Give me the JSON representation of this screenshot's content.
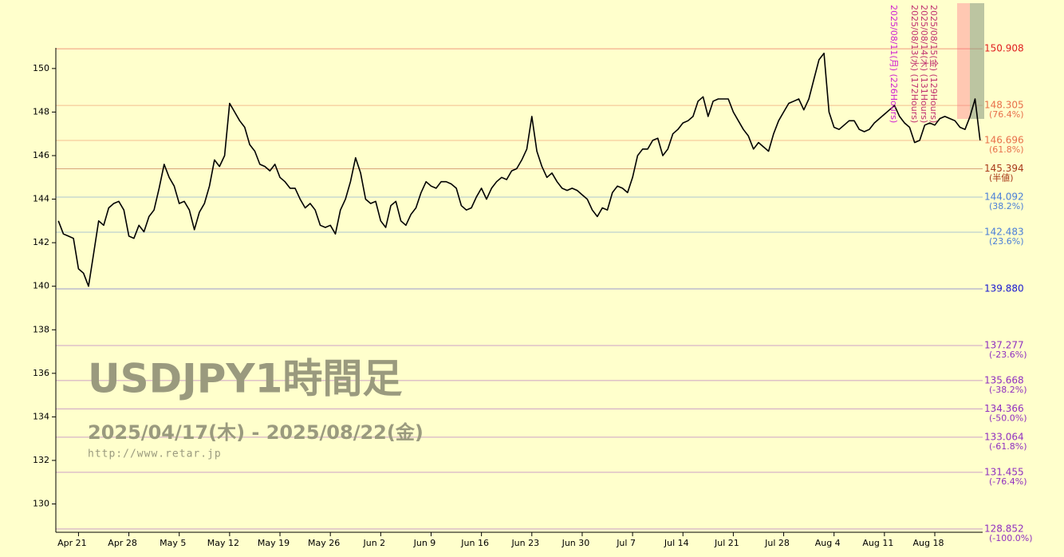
{
  "chart_data": {
    "type": "line",
    "title": "USDJPY1時間足",
    "subtitle": "2025/04/17(木) - 2025/08/22(金)",
    "source": "http://www.retar.jp",
    "categories": [
      null,
      null,
      null,
      null,
      "Apr 21",
      null,
      null,
      null,
      null,
      null,
      null,
      null,
      null,
      null,
      "Apr 28",
      null,
      null,
      null,
      null,
      null,
      null,
      null,
      null,
      null,
      "May 5",
      null,
      null,
      null,
      null,
      null,
      null,
      null,
      null,
      null,
      "May 12",
      null,
      null,
      null,
      null,
      null,
      null,
      null,
      null,
      null,
      "May 19",
      null,
      null,
      null,
      null,
      null,
      null,
      null,
      null,
      null,
      "May 26",
      null,
      null,
      null,
      null,
      null,
      null,
      null,
      null,
      null,
      "Jun 2",
      null,
      null,
      null,
      null,
      null,
      null,
      null,
      null,
      null,
      "Jun 9",
      null,
      null,
      null,
      null,
      null,
      null,
      null,
      null,
      null,
      "Jun 16",
      null,
      null,
      null,
      null,
      null,
      null,
      null,
      null,
      null,
      "Jun 23",
      null,
      null,
      null,
      null,
      null,
      null,
      null,
      null,
      null,
      "Jun 30",
      null,
      null,
      null,
      null,
      null,
      null,
      null,
      null,
      null,
      "Jul 7",
      null,
      null,
      null,
      null,
      null,
      null,
      null,
      null,
      null,
      "Jul 14",
      null,
      null,
      null,
      null,
      null,
      null,
      null,
      null,
      null,
      "Jul 21",
      null,
      null,
      null,
      null,
      null,
      null,
      null,
      null,
      null,
      "Jul 28",
      null,
      null,
      null,
      null,
      null,
      null,
      null,
      null,
      null,
      "Aug 4",
      null,
      null,
      null,
      null,
      null,
      null,
      null,
      null,
      null,
      "Aug 11",
      null,
      null,
      null,
      null,
      null,
      null,
      null,
      null,
      null,
      "Aug 18",
      null,
      null,
      null,
      null,
      null,
      null,
      null,
      null,
      null
    ],
    "series": [
      {
        "name": "USDJPY",
        "color": "#000000",
        "values": [
          143.0,
          142.4,
          142.3,
          142.2,
          140.8,
          140.6,
          140.0,
          141.5,
          143.0,
          142.8,
          143.6,
          143.8,
          143.9,
          143.5,
          142.3,
          142.2,
          142.8,
          142.5,
          143.2,
          143.5,
          144.5,
          145.6,
          145.0,
          144.6,
          143.8,
          143.9,
          143.5,
          142.6,
          143.4,
          143.8,
          144.6,
          145.8,
          145.5,
          146.0,
          148.4,
          148.0,
          147.6,
          147.3,
          146.5,
          146.2,
          145.6,
          145.5,
          145.3,
          145.6,
          145.0,
          144.8,
          144.5,
          144.5,
          144.0,
          143.6,
          143.8,
          143.5,
          142.8,
          142.7,
          142.8,
          142.4,
          143.5,
          144.0,
          144.8,
          145.9,
          145.2,
          144.0,
          143.8,
          143.9,
          143.0,
          142.7,
          143.7,
          143.9,
          143.0,
          142.8,
          143.3,
          143.6,
          144.3,
          144.8,
          144.6,
          144.5,
          144.8,
          144.8,
          144.7,
          144.5,
          143.7,
          143.5,
          143.6,
          144.1,
          144.5,
          144.0,
          144.5,
          144.8,
          145.0,
          144.9,
          145.3,
          145.4,
          145.8,
          146.3,
          147.8,
          146.2,
          145.5,
          145.0,
          145.2,
          144.8,
          144.5,
          144.4,
          144.5,
          144.4,
          144.2,
          144.0,
          143.5,
          143.2,
          143.6,
          143.5,
          144.3,
          144.6,
          144.5,
          144.3,
          145.0,
          146.0,
          146.3,
          146.3,
          146.7,
          146.8,
          146.0,
          146.3,
          147.0,
          147.2,
          147.5,
          147.6,
          147.8,
          148.5,
          148.7,
          147.8,
          148.5,
          148.6,
          148.6,
          148.6,
          148.0,
          147.6,
          147.2,
          146.9,
          146.3,
          146.6,
          146.4,
          146.2,
          147.0,
          147.6,
          148.0,
          148.4,
          148.5,
          148.6,
          148.1,
          148.6,
          149.5,
          150.4,
          150.7,
          148.0,
          147.3,
          147.2,
          147.4,
          147.6,
          147.6,
          147.2,
          147.1,
          147.2,
          147.5,
          147.7,
          147.9,
          148.1,
          148.3,
          147.8,
          147.5,
          147.3,
          146.6,
          146.7,
          147.4,
          147.5,
          147.4,
          147.7,
          147.8,
          147.7,
          147.6,
          147.3,
          147.2,
          147.8,
          148.6,
          146.7
        ]
      }
    ],
    "ylim": [
      128.7,
      153.0
    ],
    "yticks": [
      130,
      132,
      134,
      136,
      138,
      140,
      142,
      144,
      146,
      148,
      150
    ],
    "levels": [
      {
        "value": 150.908,
        "label": "150.908",
        "color": "#e02020"
      },
      {
        "value": 148.305,
        "label": "148.305",
        "note": "(76.4%)",
        "color": "#e8704a"
      },
      {
        "value": 146.696,
        "label": "146.696",
        "note": "(61.8%)",
        "color": "#e8704a"
      },
      {
        "value": 145.394,
        "label": "145.394",
        "note": "(半値)",
        "color": "#a83a1a"
      },
      {
        "value": 144.092,
        "label": "144.092",
        "note": "(38.2%)",
        "color": "#4a7ed8"
      },
      {
        "value": 142.483,
        "label": "142.483",
        "note": "(23.6%)",
        "color": "#4a7ed8"
      },
      {
        "value": 139.88,
        "label": "139.880",
        "color": "#1a1ad0"
      },
      {
        "value": 137.277,
        "label": "137.277",
        "note": "(-23.6%)",
        "color": "#9030c0"
      },
      {
        "value": 135.668,
        "label": "135.668",
        "note": "(-38.2%)",
        "color": "#9030c0"
      },
      {
        "value": 134.366,
        "label": "134.366",
        "note": "(-50.0%)",
        "color": "#9030c0"
      },
      {
        "value": 133.064,
        "label": "133.064",
        "note": "(-61.8%)",
        "color": "#9030c0"
      },
      {
        "value": 131.455,
        "label": "131.455",
        "note": "(-76.4%)",
        "color": "#9030c0"
      },
      {
        "value": 128.852,
        "label": "128.852",
        "note": "(-100.0%)",
        "color": "#9030c0"
      }
    ],
    "annotations": [
      {
        "text": "2025/08/11(月) (226Hours)",
        "color": "#d020d0"
      },
      {
        "text": "2025/08/13(水) (172Hours)",
        "color": "#c03070"
      },
      {
        "text": "2025/08/14(木) (131Hours)",
        "color": "#c03070"
      },
      {
        "text": "2025/08/15(金) (129Hours)",
        "color": "#c03070"
      }
    ],
    "grid": false
  }
}
